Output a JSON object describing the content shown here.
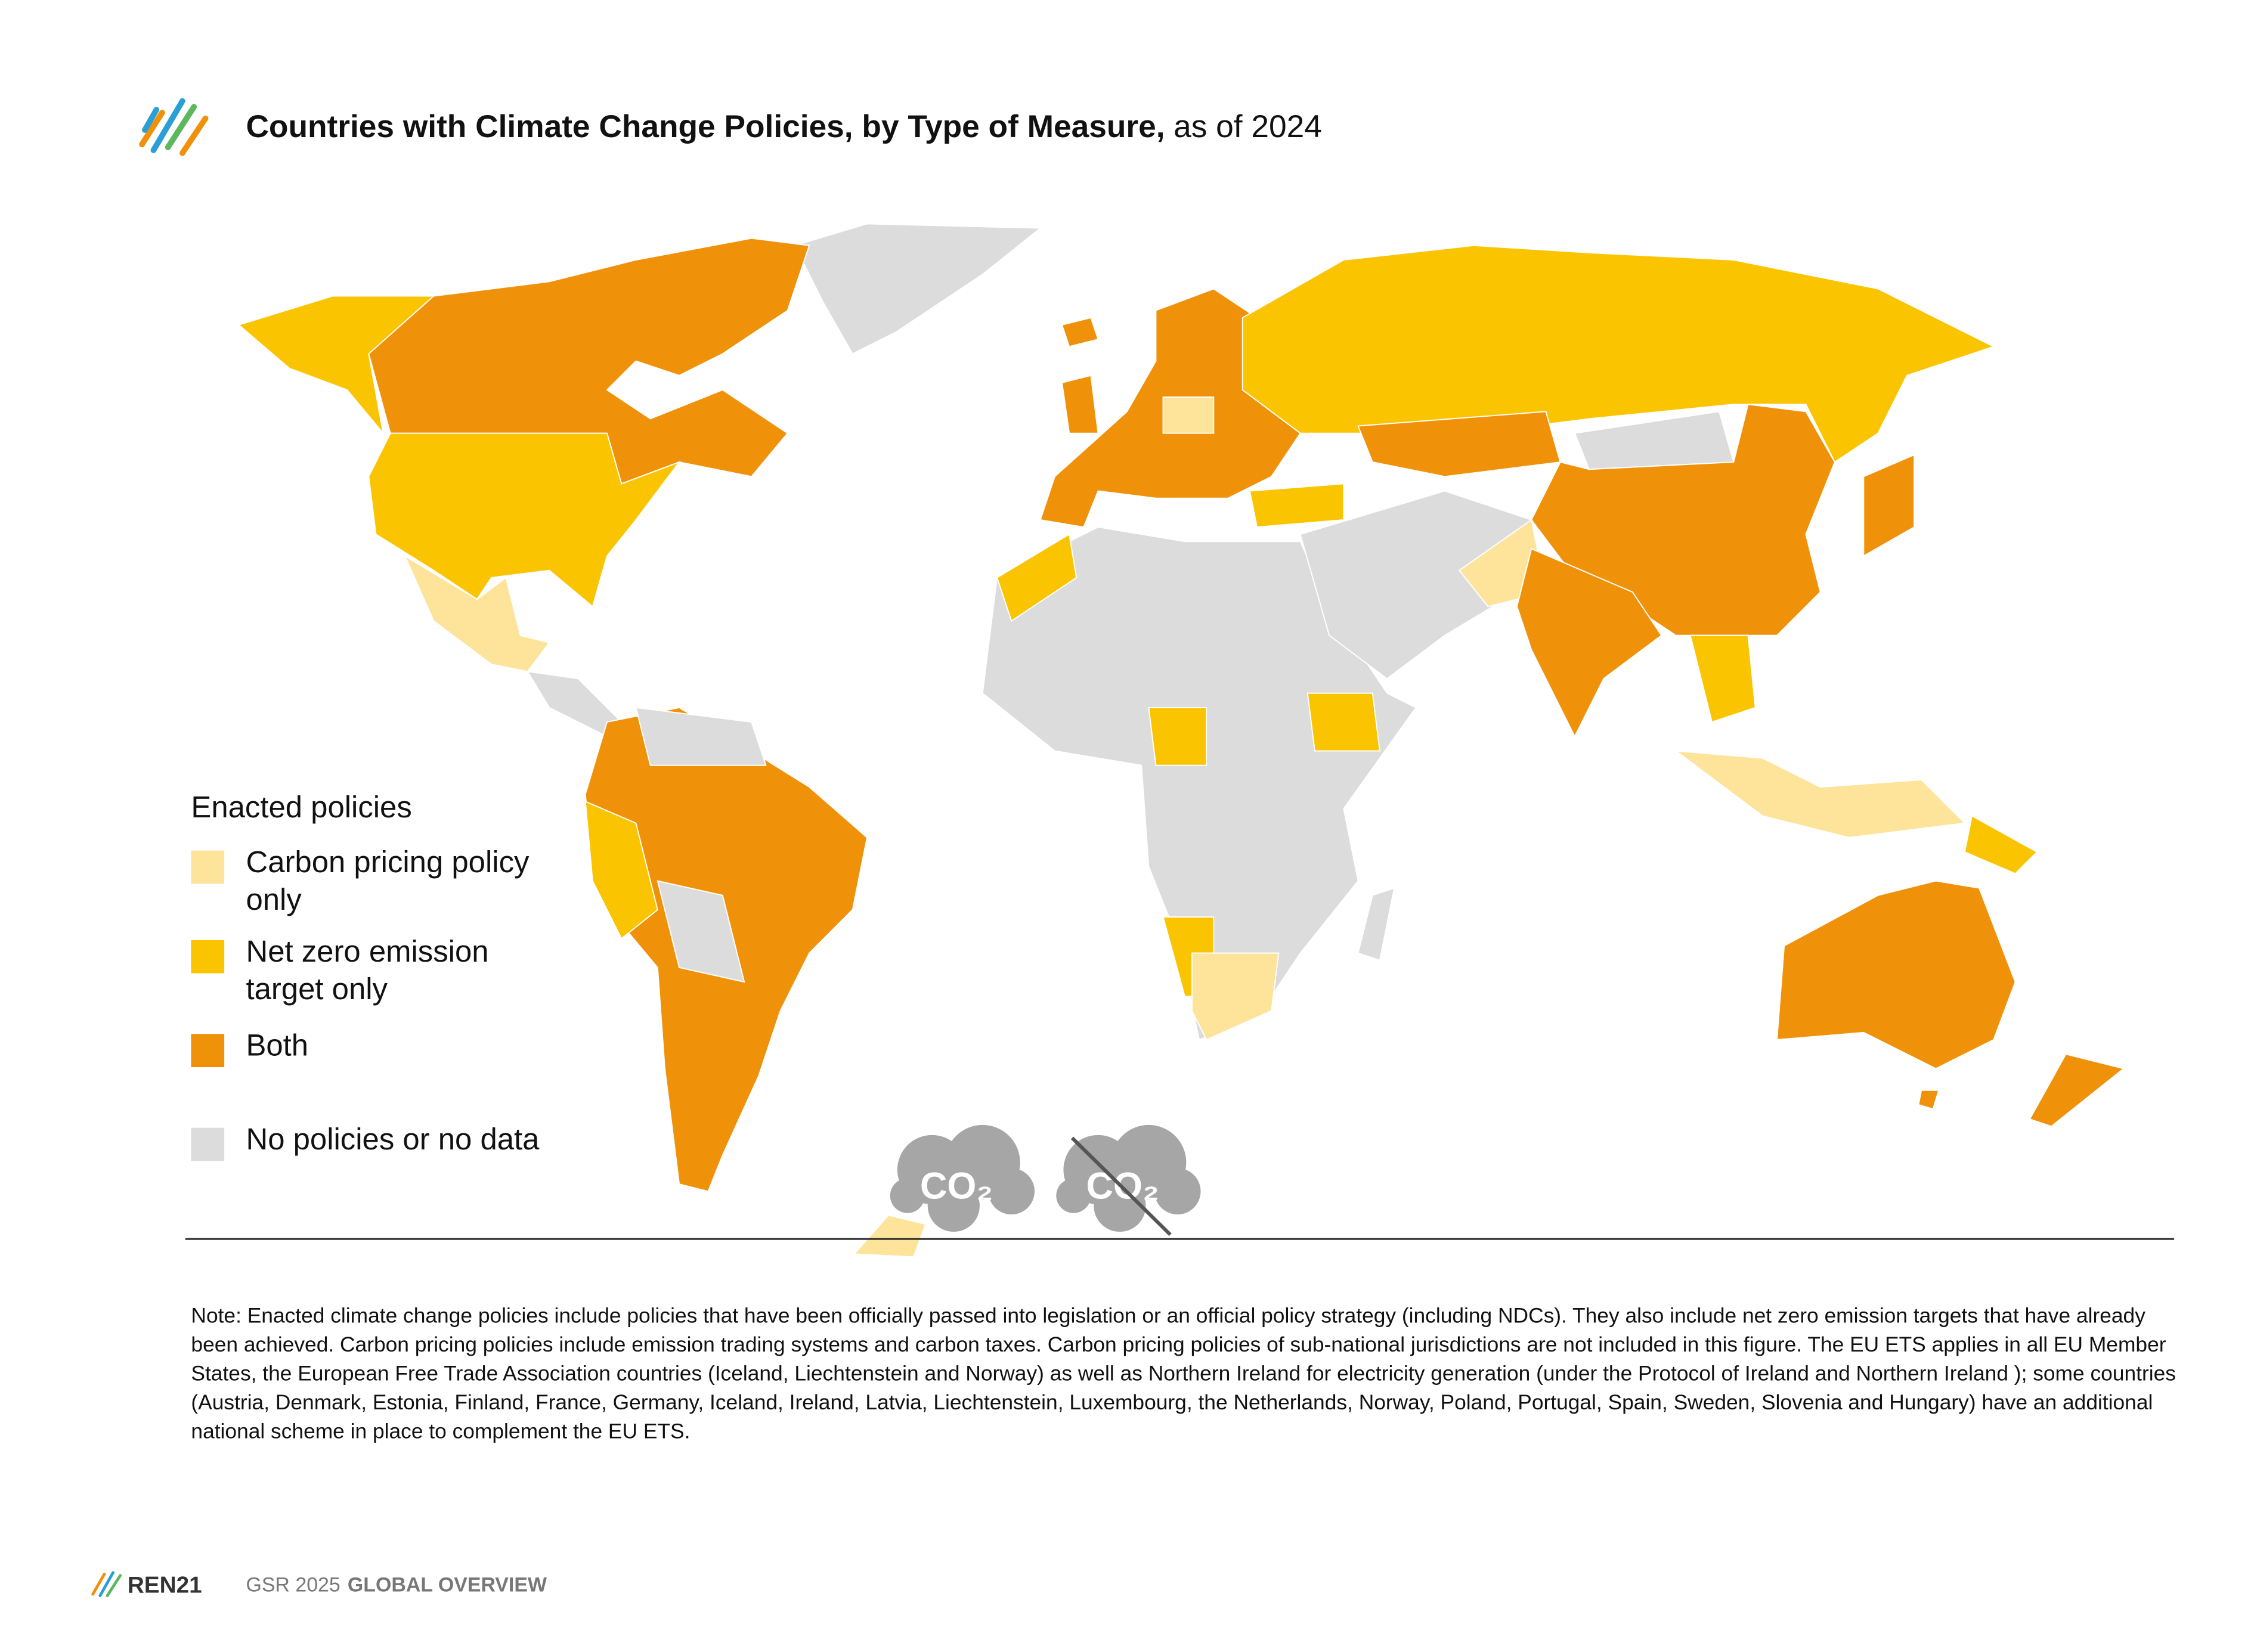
{
  "header": {
    "title": "Countries with Climate Change Policies, by Type of Measure,",
    "subtitle": "as of 2024"
  },
  "legend": {
    "title": "Enacted policies",
    "items": [
      {
        "name": "Carbon pricing policy only",
        "color": "#fde49a"
      },
      {
        "name": "Net zero emission target only",
        "color": "#fbc400"
      },
      {
        "name": "Both",
        "color": "#f0910a"
      },
      {
        "name": "No policies or no data",
        "color": "#dcdcdc"
      }
    ]
  },
  "icon_label": "CO₂",
  "note": "Note: Enacted climate change policies include policies that have been officially passed into legislation or an official policy strategy (including NDCs). They also include net zero emission targets that have already been achieved. Carbon pricing policies include emission trading systems and carbon taxes. Carbon pricing policies of sub-national jurisdictions are not included in this figure. The EU ETS applies in all EU Member States, the European Free Trade Association countries (Iceland, Liechtenstein and Norway) as well as Northern Ireland for electricity generation (under the Protocol of Ireland and Northern Ireland ); some countries (Austria, Denmark, Estonia, Finland, France, Germany, Iceland, Ireland, Latvia, Liechtenstein, Luxembourg, the Netherlands, Norway, Poland, Portugal, Spain, Sweden, Slovenia and Hungary) have an additional national scheme in place to complement the EU ETS.",
  "footer": {
    "brand": "REN21",
    "report": "GSR 2025",
    "section": "GLOBAL OVERVIEW"
  }
}
